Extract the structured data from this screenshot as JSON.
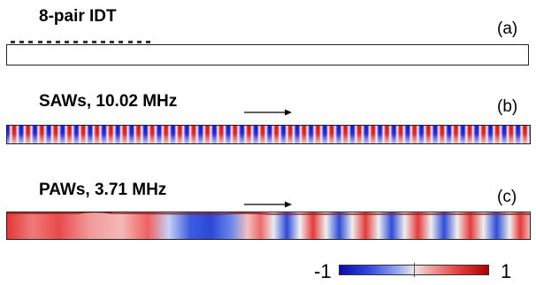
{
  "panels": {
    "idt": {
      "title": "8-pair IDT",
      "tag": "(a)"
    },
    "saw": {
      "title": "SAWs, 10.02 MHz",
      "tag": "(b)",
      "wave_cycles": 38
    },
    "paw": {
      "title": "PAWs, 3.71 MHz",
      "tag": "(c)"
    }
  },
  "idt_finger_pairs": 8,
  "colorbar": {
    "min": "-1",
    "max": "1"
  },
  "colors": {
    "negative": "#1a1ad0",
    "neutral": "#e8e8e8",
    "positive": "#d81a1a",
    "outline": "#222222"
  }
}
